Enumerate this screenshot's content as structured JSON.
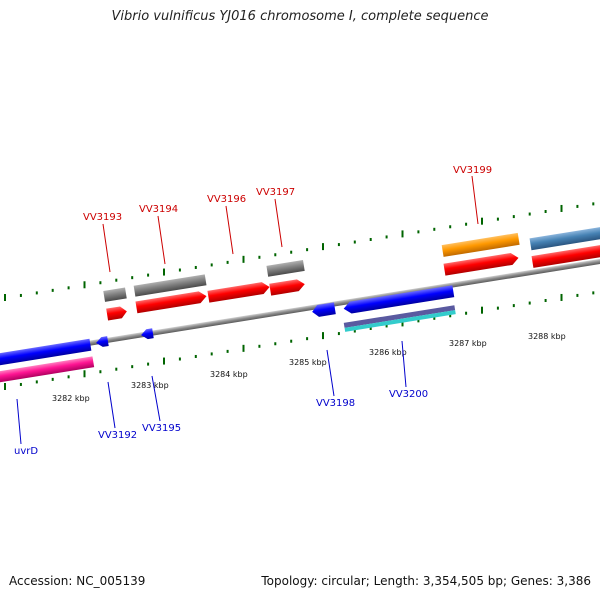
{
  "title": "Vibrio vulnificus YJ016 chromosome I, complete sequence",
  "footer": {
    "accession": "Accession: NC_005139",
    "topology": "Topology: circular; Length: 3,354,505 bp; Genes: 3,386"
  },
  "kbp_labels": [
    "3282 kbp",
    "3283 kbp",
    "3284 kbp",
    "3285 kbp",
    "3286 kbp",
    "3287 kbp",
    "3288 kbp"
  ],
  "forward_labels": [
    "VV3193",
    "VV3194",
    "VV3196",
    "VV3197",
    "VV3199"
  ],
  "reverse_labels": [
    "uvrD",
    "VV3192",
    "VV3195",
    "VV3198",
    "VV3200"
  ],
  "colors": {
    "forward_gene": "#ff0000",
    "reverse_gene": "#0000ff",
    "gray_feature": "#7a7a7a",
    "orange_feature": "#ff9900",
    "steelblue_feature": "#4682b4",
    "pink_feature": "#ff1493",
    "tick": "#006400",
    "backbone": "#888888"
  }
}
